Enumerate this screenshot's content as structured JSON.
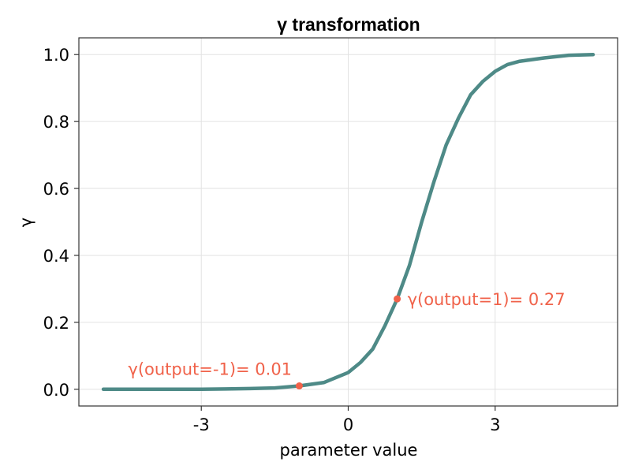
{
  "chart_data": {
    "type": "line",
    "title": "γ transformation",
    "xlabel": "parameter value",
    "ylabel": "γ",
    "xlim": [
      -5.5,
      5.5
    ],
    "ylim": [
      -0.05,
      1.05
    ],
    "xticks": [
      -3,
      0,
      3
    ],
    "xtick_labels": [
      "-3",
      "0",
      "3"
    ],
    "yticks": [
      0.0,
      0.2,
      0.4,
      0.6,
      0.8,
      1.0
    ],
    "ytick_labels": [
      "0.0",
      "0.2",
      "0.4",
      "0.6",
      "0.8",
      "1.0"
    ],
    "grid": true,
    "series": [
      {
        "color": "#4e8a87",
        "x": [
          -5.0,
          -4.5,
          -4.0,
          -3.5,
          -3.0,
          -2.5,
          -2.0,
          -1.5,
          -1.0,
          -0.5,
          0.0,
          0.25,
          0.5,
          0.75,
          1.0,
          1.25,
          1.5,
          1.75,
          2.0,
          2.25,
          2.5,
          2.75,
          3.0,
          3.25,
          3.5,
          4.0,
          4.5,
          5.0
        ],
        "y": [
          0.0,
          0.0,
          0.0,
          0.0,
          0.0,
          0.001,
          0.002,
          0.004,
          0.01,
          0.02,
          0.05,
          0.08,
          0.12,
          0.19,
          0.27,
          0.37,
          0.5,
          0.62,
          0.73,
          0.81,
          0.88,
          0.92,
          0.95,
          0.97,
          0.98,
          0.99,
          0.998,
          1.0
        ]
      }
    ],
    "annotations": [
      {
        "x": -1,
        "y": 0.01,
        "text": "γ(output=-1)= 0.01",
        "color": "#f0624a"
      },
      {
        "x": 1,
        "y": 0.27,
        "text": "γ(output=1)= 0.27",
        "color": "#f0624a"
      }
    ]
  }
}
